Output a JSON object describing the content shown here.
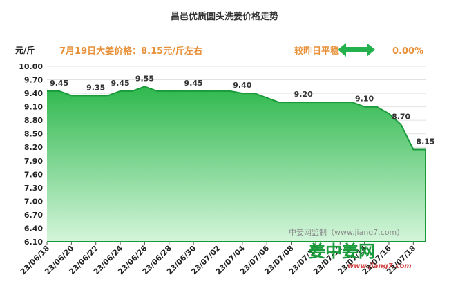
{
  "chart_data": {
    "type": "area",
    "title": "昌邑优质圆头洗姜价格走势",
    "subtitle": "7月19日大姜价格：8.15元/斤左右",
    "ylabel": "元/斤",
    "status_text": "较昨日平稳",
    "change": "0.00%",
    "ylim": [
      6.1,
      10.0
    ],
    "yticks": [
      "10.00",
      "9.70",
      "9.40",
      "9.10",
      "8.80",
      "8.50",
      "8.20",
      "7.90",
      "7.60",
      "7.30",
      "7.00",
      "6.70",
      "6.40",
      "6.10"
    ],
    "x": [
      "23/06/18",
      "23/06/19",
      "23/06/20",
      "23/06/21",
      "23/06/22",
      "23/06/23",
      "23/06/24",
      "23/06/25",
      "23/06/26",
      "23/06/27",
      "23/06/28",
      "23/06/29",
      "23/06/30",
      "23/07/01",
      "23/07/02",
      "23/07/03",
      "23/07/04",
      "23/07/05",
      "23/07/06",
      "23/07/07",
      "23/07/08",
      "23/07/09",
      "23/07/10",
      "23/07/11",
      "23/07/12",
      "23/07/13",
      "23/07/14",
      "23/07/15",
      "23/07/16",
      "23/07/17",
      "23/07/18",
      "23/07/19"
    ],
    "values": [
      9.45,
      9.45,
      9.35,
      9.35,
      9.35,
      9.35,
      9.45,
      9.45,
      9.55,
      9.45,
      9.45,
      9.45,
      9.45,
      9.45,
      9.45,
      9.45,
      9.4,
      9.4,
      9.3,
      9.2,
      9.2,
      9.2,
      9.2,
      9.2,
      9.2,
      9.2,
      9.1,
      9.1,
      8.95,
      8.7,
      8.15,
      8.15
    ],
    "xtick_labels": [
      "23/06/18",
      "23/06/20",
      "23/06/22",
      "23/06/24",
      "23/06/26",
      "23/06/28",
      "23/06/30",
      "23/07/02",
      "23/07/04",
      "23/07/06",
      "23/07/08",
      "23/07/10",
      "23/07/12",
      "23/07/14",
      "23/07/16",
      "23/07/18"
    ],
    "data_labels": [
      {
        "x": "23/06/19",
        "value": "9.45"
      },
      {
        "x": "23/06/22",
        "value": "9.35"
      },
      {
        "x": "23/06/24",
        "value": "9.45"
      },
      {
        "x": "23/06/26",
        "value": "9.55"
      },
      {
        "x": "23/06/30",
        "value": "9.45"
      },
      {
        "x": "23/07/04",
        "value": "9.40"
      },
      {
        "x": "23/07/09",
        "value": "9.20"
      },
      {
        "x": "23/07/14",
        "value": "9.10"
      },
      {
        "x": "23/07/17",
        "value": "8.70"
      },
      {
        "x": "23/07/19",
        "value": "8.15"
      }
    ],
    "grid": true,
    "colors": {
      "fill_top": "#2fb84e",
      "fill_bottom": "#c8f0d0",
      "line": "#1a9a3a",
      "accent": "#e8913a",
      "arrow": "#22b14c"
    }
  },
  "watermark": "中姜网监制（www.jiang7.com）",
  "logo": {
    "text": "姜中姜网",
    "url": "www.jiang7.com"
  }
}
